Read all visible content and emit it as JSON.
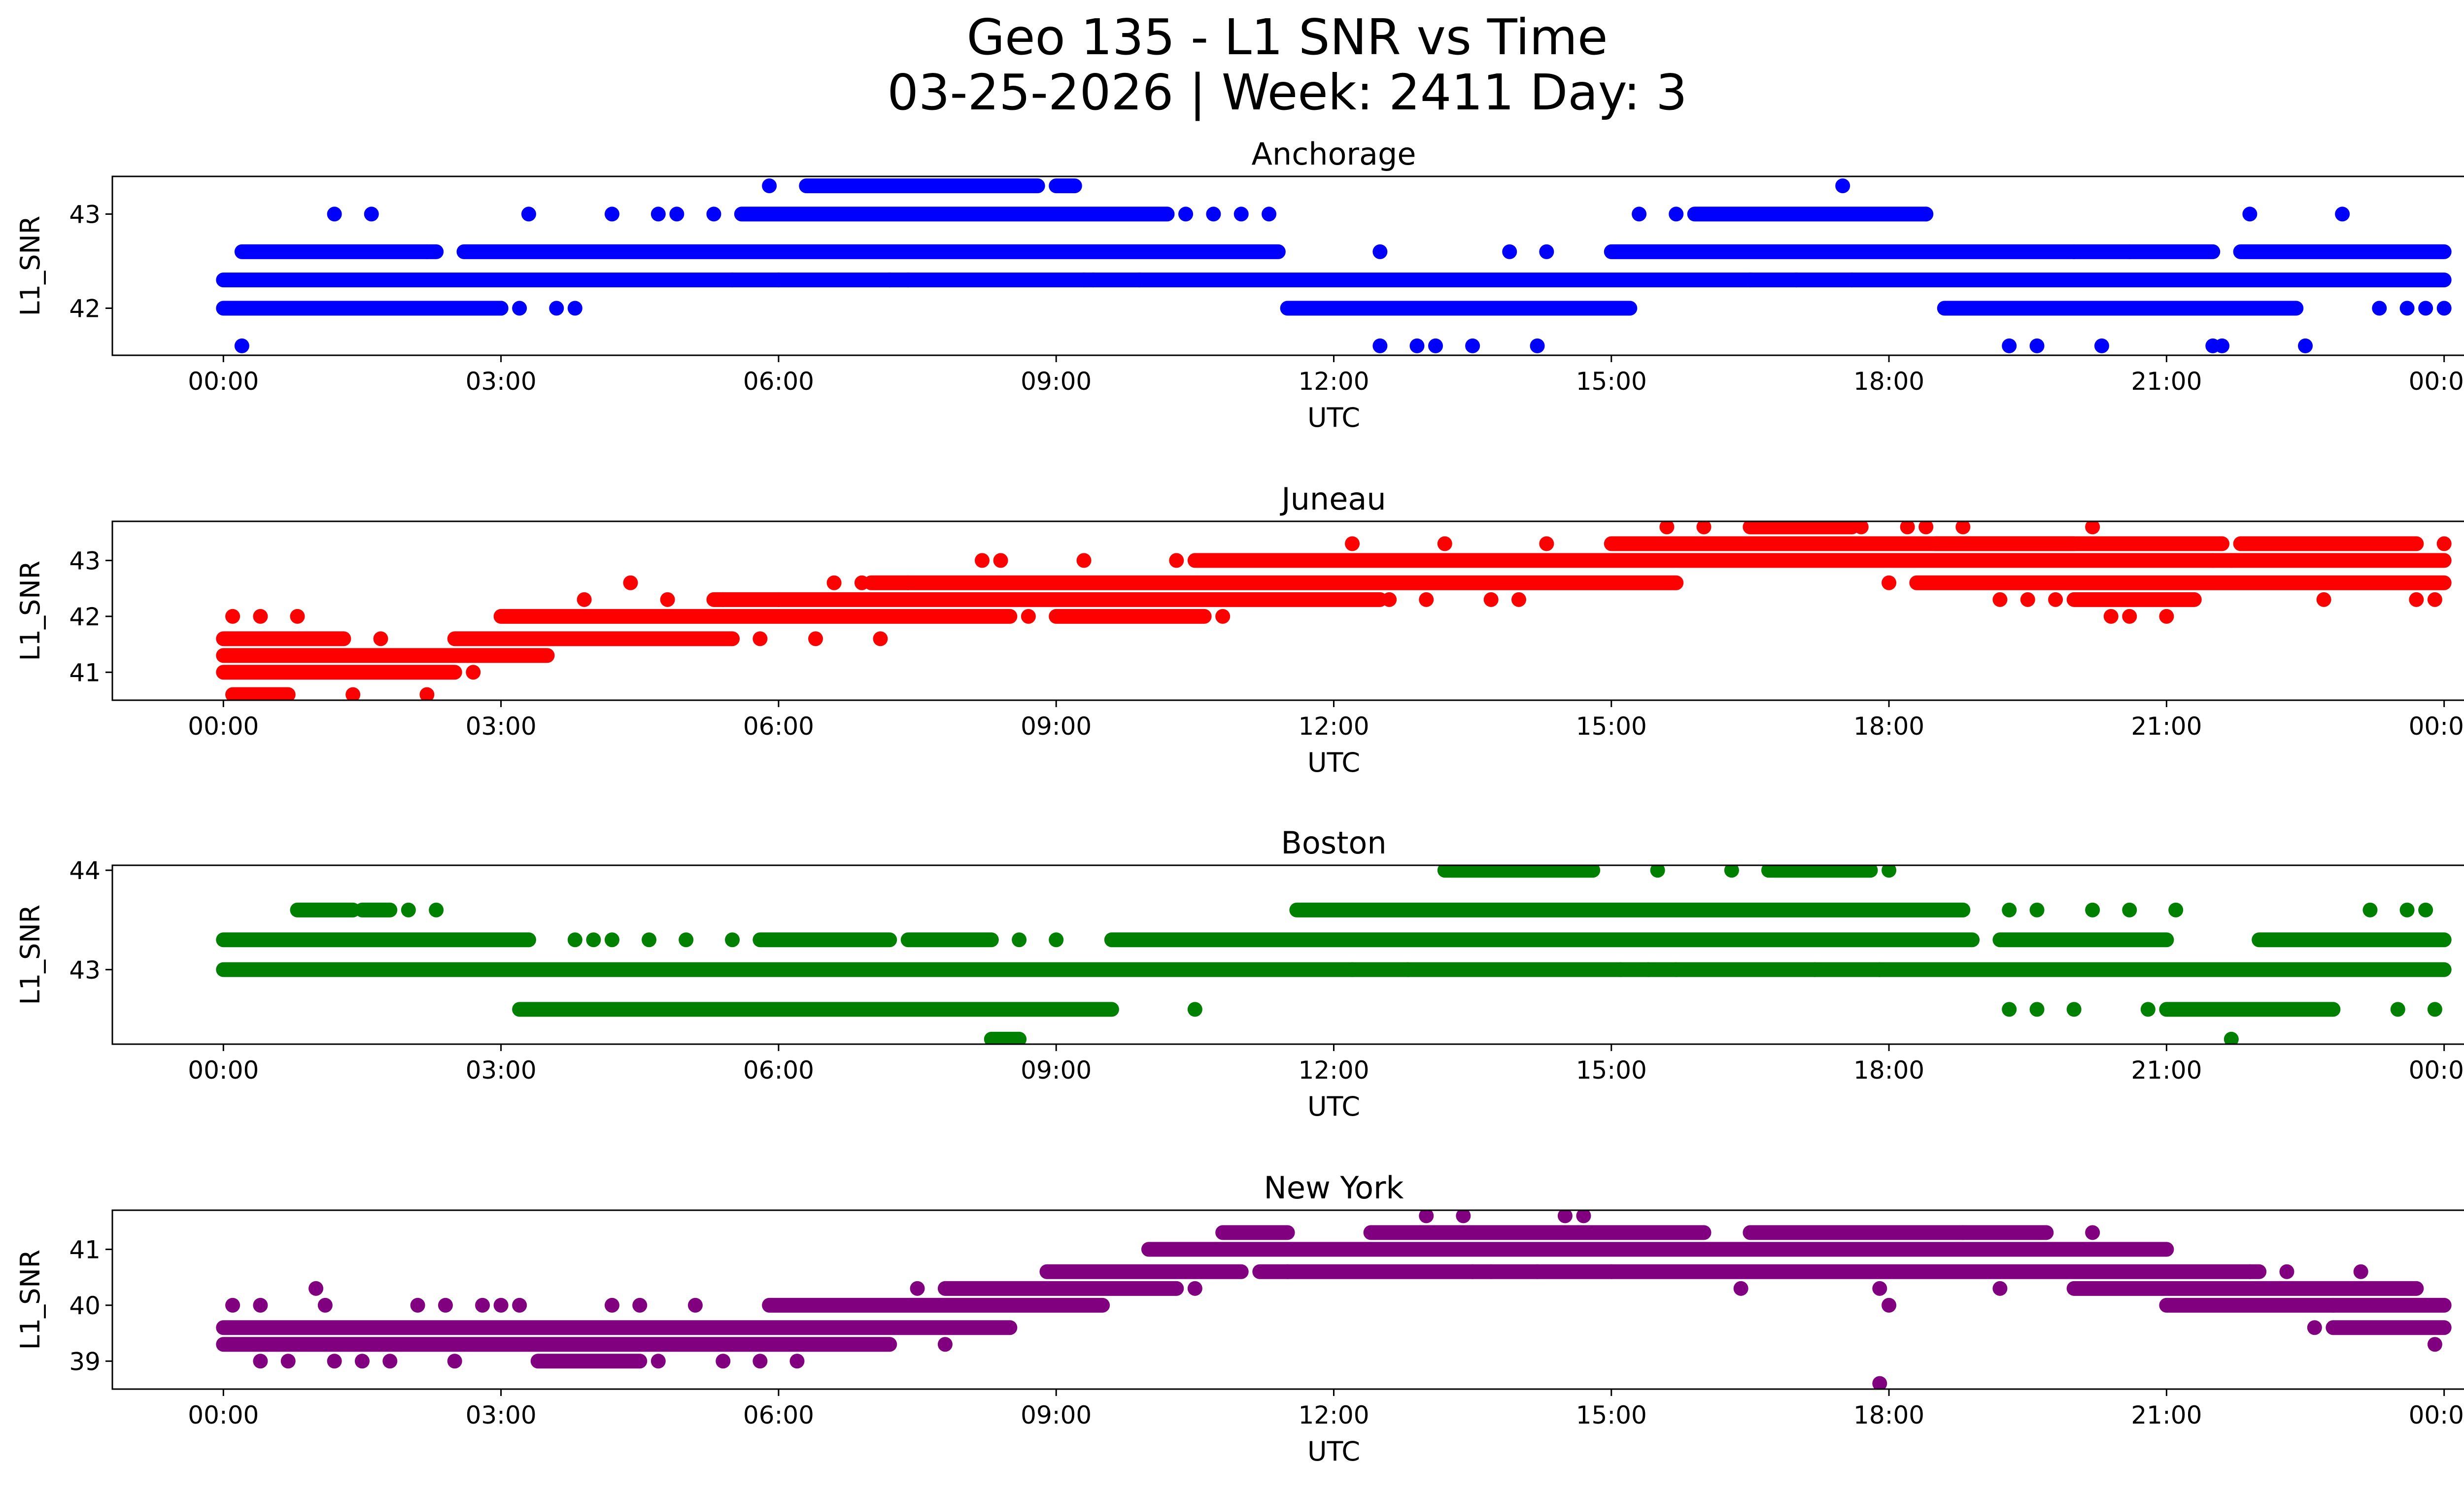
{
  "figure": {
    "title_line1": "Geo 135 - L1 SNR vs Time",
    "title_line2": "03-25-2026 | Week: 2411 Day: 3"
  },
  "chart_data": [
    {
      "type": "scatter",
      "title": "Anchorage",
      "xlabel": "UTC",
      "ylabel": "L1_SNR",
      "color": "#0000ff",
      "xticks": [
        "00:00",
        "03:00",
        "06:00",
        "09:00",
        "12:00",
        "15:00",
        "18:00",
        "21:00",
        "00:00"
      ],
      "xlim_hours": [
        -1.2,
        25.2
      ],
      "yticks": [
        42,
        43
      ],
      "ylim": [
        41.5,
        43.4
      ],
      "levels": [
        41.6,
        42.0,
        42.3,
        42.6,
        43.0,
        43.3
      ],
      "runs": [
        [
          42.3,
          0.0,
          24.0
        ],
        [
          42.0,
          0.0,
          3.0
        ],
        [
          42.0,
          11.5,
          15.2
        ],
        [
          42.0,
          18.6,
          22.4
        ],
        [
          42.6,
          0.2,
          2.3
        ],
        [
          42.6,
          2.6,
          11.4
        ],
        [
          42.6,
          15.0,
          21.5
        ],
        [
          42.6,
          21.8,
          24.0
        ],
        [
          43.0,
          5.6,
          10.2
        ],
        [
          43.0,
          15.9,
          18.4
        ],
        [
          43.3,
          6.3,
          8.8
        ],
        [
          43.3,
          9.0,
          9.2
        ]
      ],
      "points": [
        [
          0.2,
          41.6
        ],
        [
          1.2,
          43.0
        ],
        [
          1.6,
          43.0
        ],
        [
          2.2,
          42.6
        ],
        [
          3.0,
          42.0
        ],
        [
          3.2,
          42.0
        ],
        [
          3.3,
          43.0
        ],
        [
          3.6,
          42.0
        ],
        [
          3.8,
          42.0
        ],
        [
          4.2,
          43.0
        ],
        [
          4.7,
          43.0
        ],
        [
          4.9,
          43.0
        ],
        [
          5.3,
          43.0
        ],
        [
          5.5,
          42.3
        ],
        [
          5.9,
          43.3
        ],
        [
          6.0,
          42.3
        ],
        [
          7.2,
          42.3
        ],
        [
          7.4,
          42.3
        ],
        [
          9.3,
          42.3
        ],
        [
          9.4,
          42.3
        ],
        [
          9.9,
          42.3
        ],
        [
          10.4,
          43.0
        ],
        [
          10.7,
          43.0
        ],
        [
          11.0,
          43.0
        ],
        [
          11.3,
          43.0
        ],
        [
          12.5,
          42.6
        ],
        [
          12.5,
          41.6
        ],
        [
          12.9,
          41.6
        ],
        [
          13.1,
          41.6
        ],
        [
          13.5,
          41.6
        ],
        [
          13.9,
          42.6
        ],
        [
          14.2,
          41.6
        ],
        [
          14.3,
          42.6
        ],
        [
          15.3,
          43.0
        ],
        [
          15.7,
          43.0
        ],
        [
          16.5,
          42.3
        ],
        [
          17.0,
          42.3
        ],
        [
          17.5,
          43.3
        ],
        [
          17.6,
          42.3
        ],
        [
          18.4,
          43.0
        ],
        [
          19.3,
          41.6
        ],
        [
          19.6,
          41.6
        ],
        [
          20.0,
          42.6
        ],
        [
          20.3,
          41.6
        ],
        [
          20.6,
          42.6
        ],
        [
          21.5,
          41.6
        ],
        [
          21.6,
          41.6
        ],
        [
          21.9,
          43.0
        ],
        [
          22.3,
          42.0
        ],
        [
          22.5,
          41.6
        ],
        [
          22.9,
          43.0
        ],
        [
          23.3,
          42.0
        ],
        [
          23.6,
          42.0
        ],
        [
          23.8,
          42.0
        ],
        [
          24.0,
          42.0
        ]
      ]
    },
    {
      "type": "scatter",
      "title": "Juneau",
      "xlabel": "UTC",
      "ylabel": "L1_SNR",
      "color": "#ff0000",
      "xticks": [
        "00:00",
        "03:00",
        "06:00",
        "09:00",
        "12:00",
        "15:00",
        "18:00",
        "21:00",
        "00:00"
      ],
      "xlim_hours": [
        -1.2,
        25.2
      ],
      "yticks": [
        41,
        42,
        43
      ],
      "ylim": [
        40.5,
        43.7
      ],
      "levels": [
        40.6,
        41.0,
        41.3,
        41.6,
        42.0,
        42.3,
        42.6,
        43.0,
        43.3,
        43.6
      ],
      "runs": [
        [
          41.3,
          0.0,
          3.5
        ],
        [
          41.0,
          0.0,
          2.5
        ],
        [
          41.6,
          0.0,
          1.3
        ],
        [
          40.6,
          0.1,
          0.7
        ],
        [
          41.6,
          2.5,
          5.5
        ],
        [
          42.0,
          3.0,
          8.5
        ],
        [
          42.3,
          5.3,
          12.5
        ],
        [
          42.6,
          7.0,
          15.7
        ],
        [
          43.0,
          10.5,
          24.0
        ],
        [
          43.3,
          15.0,
          20.0
        ],
        [
          43.6,
          16.5,
          17.6
        ],
        [
          42.6,
          18.3,
          24.0
        ],
        [
          43.3,
          18.5,
          21.6
        ],
        [
          42.3,
          20.0,
          21.3
        ],
        [
          43.3,
          21.8,
          23.7
        ],
        [
          42.0,
          9.0,
          10.6
        ]
      ],
      "points": [
        [
          0.1,
          42.0
        ],
        [
          0.4,
          42.0
        ],
        [
          0.8,
          42.0
        ],
        [
          1.4,
          40.6
        ],
        [
          1.7,
          41.6
        ],
        [
          2.2,
          40.6
        ],
        [
          2.7,
          41.0
        ],
        [
          3.9,
          42.3
        ],
        [
          4.4,
          42.6
        ],
        [
          4.8,
          42.3
        ],
        [
          5.4,
          42.3
        ],
        [
          5.8,
          41.6
        ],
        [
          6.0,
          42.3
        ],
        [
          6.4,
          41.6
        ],
        [
          6.6,
          42.6
        ],
        [
          6.9,
          42.6
        ],
        [
          7.1,
          41.6
        ],
        [
          7.4,
          42.6
        ],
        [
          8.2,
          43.0
        ],
        [
          8.4,
          43.0
        ],
        [
          8.7,
          42.0
        ],
        [
          9.3,
          43.0
        ],
        [
          10.3,
          43.0
        ],
        [
          10.8,
          42.0
        ],
        [
          12.2,
          43.3
        ],
        [
          12.6,
          42.3
        ],
        [
          13.0,
          42.3
        ],
        [
          13.2,
          43.3
        ],
        [
          13.7,
          42.3
        ],
        [
          14.0,
          42.3
        ],
        [
          14.3,
          43.3
        ],
        [
          15.6,
          43.6
        ],
        [
          16.0,
          43.6
        ],
        [
          17.7,
          43.6
        ],
        [
          18.0,
          42.6
        ],
        [
          18.2,
          43.6
        ],
        [
          18.4,
          43.6
        ],
        [
          18.8,
          43.6
        ],
        [
          19.2,
          42.3
        ],
        [
          19.5,
          42.3
        ],
        [
          19.8,
          42.3
        ],
        [
          20.2,
          43.6
        ],
        [
          20.4,
          42.0
        ],
        [
          20.6,
          42.0
        ],
        [
          21.0,
          42.0
        ],
        [
          21.5,
          43.0
        ],
        [
          21.7,
          43.0
        ],
        [
          22.7,
          42.3
        ],
        [
          23.7,
          42.3
        ],
        [
          23.9,
          42.3
        ],
        [
          24.0,
          43.3
        ]
      ]
    },
    {
      "type": "scatter",
      "title": "Boston",
      "xlabel": "UTC",
      "ylabel": "L1_SNR",
      "color": "#008000",
      "xticks": [
        "00:00",
        "03:00",
        "06:00",
        "09:00",
        "12:00",
        "15:00",
        "18:00",
        "21:00",
        "00:00"
      ],
      "xlim_hours": [
        -1.2,
        25.2
      ],
      "yticks": [
        43,
        44
      ],
      "ylim": [
        42.25,
        44.05
      ],
      "levels": [
        42.3,
        42.6,
        43.0,
        43.3,
        43.6,
        44.0
      ],
      "runs": [
        [
          43.0,
          0.0,
          24.0
        ],
        [
          43.3,
          0.0,
          3.3
        ],
        [
          43.6,
          0.8,
          1.4
        ],
        [
          43.6,
          1.5,
          1.8
        ],
        [
          43.3,
          5.8,
          7.2
        ],
        [
          43.3,
          7.4,
          8.3
        ],
        [
          43.3,
          9.6,
          18.9
        ],
        [
          43.3,
          19.2,
          21.0
        ],
        [
          43.3,
          22.0,
          24.0
        ],
        [
          43.6,
          11.6,
          18.8
        ],
        [
          44.0,
          13.2,
          14.8
        ],
        [
          44.0,
          16.7,
          17.8
        ],
        [
          42.6,
          3.2,
          9.6
        ],
        [
          42.6,
          21.0,
          22.8
        ],
        [
          42.3,
          8.3,
          8.6
        ]
      ],
      "points": [
        [
          2.0,
          43.6
        ],
        [
          2.3,
          43.6
        ],
        [
          3.8,
          43.3
        ],
        [
          4.0,
          43.3
        ],
        [
          4.2,
          43.3
        ],
        [
          4.6,
          43.3
        ],
        [
          5.0,
          43.3
        ],
        [
          5.5,
          43.3
        ],
        [
          8.6,
          43.3
        ],
        [
          9.0,
          43.3
        ],
        [
          10.5,
          42.6
        ],
        [
          12.2,
          43.0
        ],
        [
          12.8,
          43.0
        ],
        [
          15.1,
          43.0
        ],
        [
          15.4,
          43.0
        ],
        [
          15.5,
          44.0
        ],
        [
          15.7,
          43.0
        ],
        [
          16.3,
          44.0
        ],
        [
          17.2,
          43.0
        ],
        [
          17.9,
          43.0
        ],
        [
          18.0,
          44.0
        ],
        [
          19.3,
          43.6
        ],
        [
          19.6,
          43.6
        ],
        [
          19.3,
          42.6
        ],
        [
          19.6,
          42.6
        ],
        [
          20.0,
          42.6
        ],
        [
          20.2,
          43.6
        ],
        [
          20.6,
          43.6
        ],
        [
          20.8,
          42.6
        ],
        [
          21.1,
          43.6
        ],
        [
          21.7,
          42.3
        ],
        [
          23.2,
          43.6
        ],
        [
          23.6,
          43.6
        ],
        [
          23.8,
          43.6
        ],
        [
          23.5,
          42.6
        ],
        [
          23.9,
          42.6
        ]
      ]
    },
    {
      "type": "scatter",
      "title": "New York",
      "xlabel": "UTC",
      "ylabel": "L1_SNR",
      "color": "#800080",
      "xticks": [
        "00:00",
        "03:00",
        "06:00",
        "09:00",
        "12:00",
        "15:00",
        "18:00",
        "21:00",
        "00:00"
      ],
      "xlim_hours": [
        -1.2,
        25.2
      ],
      "yticks": [
        39,
        40,
        41
      ],
      "ylim": [
        38.5,
        41.7
      ],
      "levels": [
        38.6,
        39.0,
        39.3,
        39.6,
        40.0,
        40.3,
        40.6,
        41.0,
        41.3,
        41.6
      ],
      "runs": [
        [
          39.3,
          0.0,
          7.2
        ],
        [
          39.6,
          0.0,
          8.5
        ],
        [
          40.0,
          5.9,
          9.5
        ],
        [
          40.3,
          7.8,
          10.3
        ],
        [
          40.6,
          8.9,
          11.0
        ],
        [
          41.0,
          10.0,
          21.0
        ],
        [
          41.3,
          10.8,
          11.5
        ],
        [
          41.3,
          12.4,
          16.0
        ],
        [
          41.3,
          16.5,
          19.7
        ],
        [
          40.6,
          11.2,
          22.0
        ],
        [
          40.3,
          20.0,
          23.7
        ],
        [
          40.0,
          21.0,
          24.0
        ],
        [
          39.6,
          22.8,
          24.0
        ],
        [
          39.0,
          3.4,
          4.5
        ]
      ],
      "points": [
        [
          0.1,
          40.0
        ],
        [
          0.4,
          40.0
        ],
        [
          0.4,
          39.0
        ],
        [
          0.7,
          39.0
        ],
        [
          1.0,
          40.3
        ],
        [
          1.1,
          40.0
        ],
        [
          1.2,
          39.0
        ],
        [
          1.5,
          39.0
        ],
        [
          1.8,
          39.0
        ],
        [
          2.1,
          40.0
        ],
        [
          2.4,
          40.0
        ],
        [
          2.5,
          39.0
        ],
        [
          2.8,
          40.0
        ],
        [
          3.0,
          40.0
        ],
        [
          3.2,
          40.0
        ],
        [
          4.2,
          40.0
        ],
        [
          4.5,
          40.0
        ],
        [
          4.7,
          39.0
        ],
        [
          5.1,
          40.0
        ],
        [
          5.4,
          39.0
        ],
        [
          5.8,
          39.0
        ],
        [
          6.2,
          39.0
        ],
        [
          7.5,
          40.3
        ],
        [
          7.8,
          39.3
        ],
        [
          10.5,
          40.3
        ],
        [
          11.5,
          40.6
        ],
        [
          13.0,
          41.6
        ],
        [
          13.4,
          41.6
        ],
        [
          14.5,
          41.6
        ],
        [
          14.7,
          41.6
        ],
        [
          13.5,
          40.6
        ],
        [
          13.7,
          40.6
        ],
        [
          14.2,
          40.6
        ],
        [
          15.0,
          40.6
        ],
        [
          16.4,
          40.3
        ],
        [
          17.9,
          38.6
        ],
        [
          17.9,
          40.3
        ],
        [
          18.0,
          40.0
        ],
        [
          18.8,
          41.3
        ],
        [
          19.2,
          40.3
        ],
        [
          20.2,
          41.3
        ],
        [
          21.9,
          40.6
        ],
        [
          22.3,
          40.6
        ],
        [
          22.6,
          39.6
        ],
        [
          22.8,
          40.0
        ],
        [
          23.1,
          40.6
        ],
        [
          23.9,
          39.3
        ]
      ]
    }
  ]
}
